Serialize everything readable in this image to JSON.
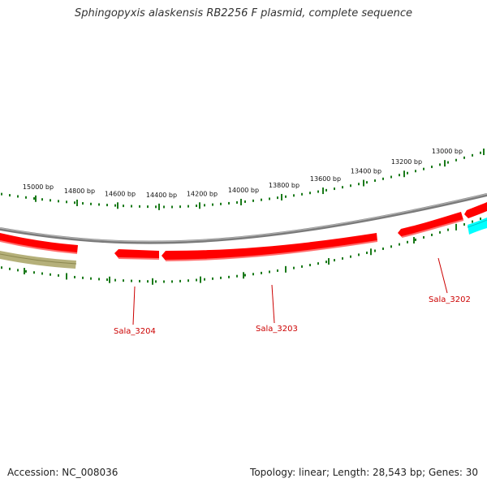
{
  "title": "Sphingopyxis alaskensis RB2256 F plasmid, complete sequence",
  "footer": {
    "accession": "Accession: NC_008036",
    "topology": "Topology: linear; Length: 28,543 bp; Genes: 30"
  },
  "scale_labels": [
    "15000 bp",
    "14800 bp",
    "14600 bp",
    "14400 bp",
    "14200 bp",
    "14000 bp",
    "13800 bp",
    "13600 bp",
    "13400 bp",
    "13200 bp",
    "13000 bp"
  ],
  "genes": [
    {
      "label": "Sala_3204",
      "color": "#ff0000"
    },
    {
      "label": "Sala_3203",
      "color": "#ff0000"
    },
    {
      "label": "Sala_3202",
      "color": "#ff0000"
    }
  ],
  "colors": {
    "gene_red": "#ff0000",
    "gene_olive": "#b5b07a",
    "gene_cyan": "#00ffff",
    "backbone": "#888888",
    "ticks": "#1a7a1a",
    "label_red": "#cc0000"
  }
}
